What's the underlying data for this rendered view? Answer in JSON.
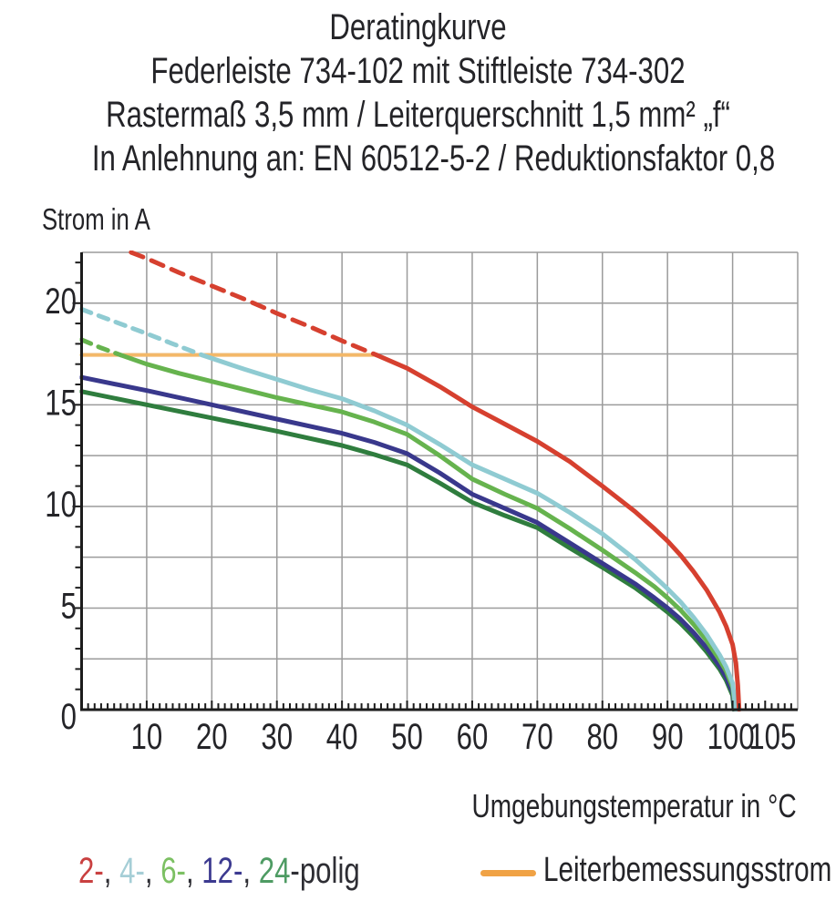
{
  "title": {
    "lines": [
      "Deratingkurve",
      "Federleiste 734-102 mit Stiftleiste 734-302",
      "Rastermaß 3,5 mm / Leiterquerschnitt 1,5 mm² „f“",
      "In Anlehnung an: EN 60512-5-2 / Reduktionsfaktor 0,8"
    ]
  },
  "chart_data": {
    "type": "line",
    "ylabel": "Strom in A",
    "xlabel": "Umgebungstemperatur in °C",
    "xlim": [
      0,
      110
    ],
    "ylim": [
      0,
      22.5
    ],
    "grid": {
      "x_step": 10,
      "y_step": 2.5,
      "color": "#9b9b9b",
      "on": true
    },
    "axis_color": "#1c1c1c",
    "x_tick_labels": [
      {
        "v": 10,
        "label": "10"
      },
      {
        "v": 20,
        "label": "20"
      },
      {
        "v": 30,
        "label": "30"
      },
      {
        "v": 40,
        "label": "40"
      },
      {
        "v": 50,
        "label": "50"
      },
      {
        "v": 60,
        "label": "60"
      },
      {
        "v": 70,
        "label": "70"
      },
      {
        "v": 80,
        "label": "80"
      },
      {
        "v": 90,
        "label": "90"
      },
      {
        "v": 100,
        "label": "100",
        "dx": -2
      },
      {
        "v": 105,
        "label": "105",
        "dx": 8
      }
    ],
    "y_tick_labels": [
      {
        "v": 0,
        "label": "0",
        "dy": 10
      },
      {
        "v": 5,
        "label": "5"
      },
      {
        "v": 10,
        "label": "10"
      },
      {
        "v": 15,
        "label": "15"
      },
      {
        "v": 20,
        "label": "20"
      }
    ],
    "rated_line": {
      "label": "Leiterbemessungsstrom",
      "value": 17.45,
      "x_from": 0,
      "x_to": 45.3,
      "color": "#f3b869",
      "legend_color": "#f0a245"
    },
    "series": [
      {
        "name": "2-polig",
        "poles": 2,
        "color": "#d6402f",
        "dash_pattern": "14 10",
        "dashed": [
          [
            7.6,
            22.5
          ],
          [
            10,
            22.2
          ],
          [
            15,
            21.5
          ],
          [
            20,
            20.85
          ],
          [
            25,
            20.2
          ],
          [
            30,
            19.5
          ],
          [
            35,
            18.85
          ],
          [
            40,
            18.15
          ],
          [
            45.3,
            17.45
          ]
        ],
        "solid": [
          [
            45.3,
            17.45
          ],
          [
            50,
            16.8
          ],
          [
            55,
            15.9
          ],
          [
            60,
            14.9
          ],
          [
            65,
            14.05
          ],
          [
            70,
            13.2
          ],
          [
            75,
            12.2
          ],
          [
            80,
            11.0
          ],
          [
            85,
            9.75
          ],
          [
            88,
            8.9
          ],
          [
            90,
            8.3
          ],
          [
            92,
            7.6
          ],
          [
            94,
            6.8
          ],
          [
            96,
            5.9
          ],
          [
            98,
            4.8
          ],
          [
            99,
            4.1
          ],
          [
            100,
            3.2
          ],
          [
            100.5,
            2.3
          ],
          [
            100.8,
            1.2
          ],
          [
            101,
            0
          ]
        ]
      },
      {
        "name": "4-polig",
        "poles": 4,
        "color": "#8fcbd2",
        "dash_pattern": "11 9",
        "dashed": [
          [
            0,
            19.7
          ],
          [
            5,
            19.1
          ],
          [
            10,
            18.5
          ],
          [
            14,
            18.0
          ],
          [
            18.5,
            17.45
          ]
        ],
        "solid": [
          [
            18.5,
            17.45
          ],
          [
            25,
            16.75
          ],
          [
            30,
            16.25
          ],
          [
            35,
            15.75
          ],
          [
            40,
            15.3
          ],
          [
            45,
            14.7
          ],
          [
            50,
            14.0
          ],
          [
            55,
            13.05
          ],
          [
            60,
            12.05
          ],
          [
            65,
            11.35
          ],
          [
            70,
            10.65
          ],
          [
            75,
            9.7
          ],
          [
            80,
            8.65
          ],
          [
            85,
            7.4
          ],
          [
            88,
            6.55
          ],
          [
            90,
            5.95
          ],
          [
            92,
            5.3
          ],
          [
            94,
            4.55
          ],
          [
            96,
            3.7
          ],
          [
            98,
            2.7
          ],
          [
            99,
            2.1
          ],
          [
            100,
            1.3
          ],
          [
            100.5,
            0
          ]
        ]
      },
      {
        "name": "6-polig",
        "poles": 6,
        "color": "#66b34e",
        "dash_pattern": "11 9",
        "dashed": [
          [
            0,
            18.2
          ],
          [
            3,
            17.8
          ],
          [
            6,
            17.45
          ]
        ],
        "solid": [
          [
            6,
            17.45
          ],
          [
            10,
            17.0
          ],
          [
            15,
            16.55
          ],
          [
            20,
            16.15
          ],
          [
            25,
            15.75
          ],
          [
            30,
            15.35
          ],
          [
            35,
            15.0
          ],
          [
            40,
            14.65
          ],
          [
            45,
            14.15
          ],
          [
            50,
            13.55
          ],
          [
            55,
            12.5
          ],
          [
            60,
            11.35
          ],
          [
            65,
            10.6
          ],
          [
            70,
            9.9
          ],
          [
            75,
            8.9
          ],
          [
            80,
            7.85
          ],
          [
            85,
            6.75
          ],
          [
            88,
            6.05
          ],
          [
            90,
            5.5
          ],
          [
            92,
            4.9
          ],
          [
            94,
            4.2
          ],
          [
            96,
            3.4
          ],
          [
            98,
            2.45
          ],
          [
            99,
            1.9
          ],
          [
            100,
            1.1
          ],
          [
            100.4,
            0
          ]
        ]
      },
      {
        "name": "12-polig",
        "poles": 12,
        "color": "#39388c",
        "dash_pattern": "11 9",
        "dashed": [],
        "solid": [
          [
            0,
            16.35
          ],
          [
            10,
            15.7
          ],
          [
            20,
            15.0
          ],
          [
            30,
            14.3
          ],
          [
            40,
            13.6
          ],
          [
            45,
            13.15
          ],
          [
            50,
            12.6
          ],
          [
            55,
            11.65
          ],
          [
            60,
            10.6
          ],
          [
            65,
            9.9
          ],
          [
            70,
            9.2
          ],
          [
            75,
            8.2
          ],
          [
            80,
            7.2
          ],
          [
            85,
            6.2
          ],
          [
            88,
            5.5
          ],
          [
            90,
            5.0
          ],
          [
            92,
            4.45
          ],
          [
            94,
            3.8
          ],
          [
            96,
            3.05
          ],
          [
            98,
            2.15
          ],
          [
            99,
            1.6
          ],
          [
            100,
            0.85
          ],
          [
            100.3,
            0
          ]
        ]
      },
      {
        "name": "24-polig",
        "poles": 24,
        "color": "#2f7d3e",
        "dash_pattern": "11 9",
        "dashed": [],
        "solid": [
          [
            0,
            15.65
          ],
          [
            10,
            15.0
          ],
          [
            20,
            14.35
          ],
          [
            30,
            13.7
          ],
          [
            40,
            13.0
          ],
          [
            45,
            12.55
          ],
          [
            50,
            12.05
          ],
          [
            55,
            11.15
          ],
          [
            60,
            10.2
          ],
          [
            65,
            9.55
          ],
          [
            70,
            8.95
          ],
          [
            75,
            7.95
          ],
          [
            80,
            7.0
          ],
          [
            85,
            6.0
          ],
          [
            88,
            5.3
          ],
          [
            90,
            4.8
          ],
          [
            92,
            4.25
          ],
          [
            94,
            3.6
          ],
          [
            96,
            2.85
          ],
          [
            98,
            2.0
          ],
          [
            99,
            1.45
          ],
          [
            100,
            0.7
          ],
          [
            100.2,
            0
          ]
        ]
      }
    ]
  },
  "legend": {
    "poles": {
      "items": [
        {
          "label": "2-",
          "color": "#c94040"
        },
        {
          "label": "4-",
          "color": "#a5ced6"
        },
        {
          "label": "6-",
          "color": "#7cc063"
        },
        {
          "label": "12-",
          "color": "#3c3a90"
        },
        {
          "label": "24",
          "color": "#4e9b63"
        }
      ],
      "separator": ", ",
      "suffix": "-polig",
      "suffix_color": "#2e2e34"
    },
    "rated": {
      "label": "Leiterbemessungsstrom"
    }
  }
}
